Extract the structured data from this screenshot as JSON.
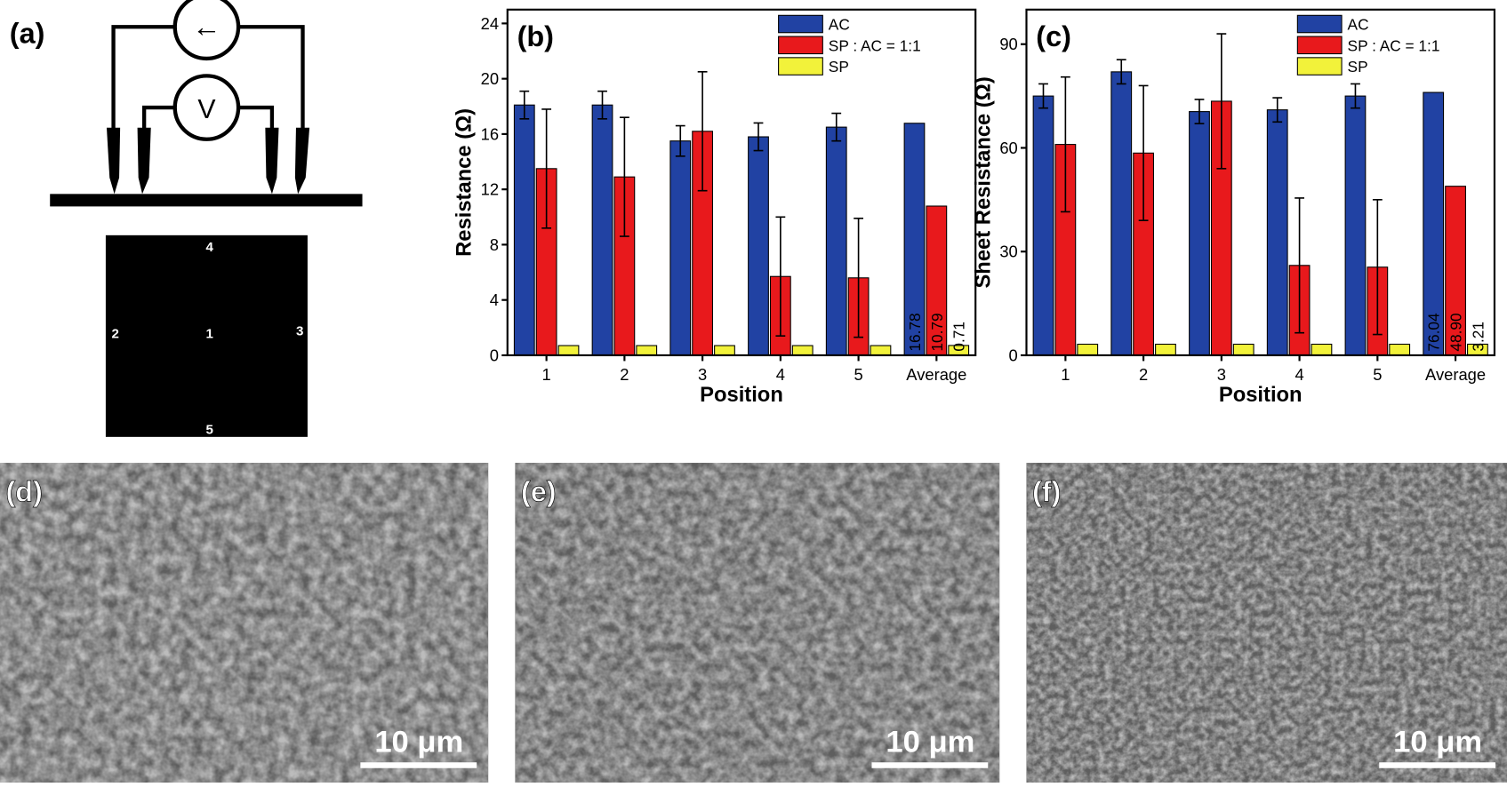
{
  "panel_a": {
    "label": "(a)",
    "ammeter": "←",
    "voltmeter": "V",
    "positions": [
      "4",
      "2",
      "1",
      "3",
      "5"
    ]
  },
  "chart_data": [
    {
      "type": "bar",
      "panel_label": "(b)",
      "xlabel": "Position",
      "ylabel": "Resistance (Ω)",
      "categories": [
        "1",
        "2",
        "3",
        "4",
        "5",
        "Average"
      ],
      "ylim": [
        0,
        25
      ],
      "yticks": [
        0,
        4,
        8,
        12,
        16,
        20,
        24
      ],
      "legend": "upper right",
      "series": [
        {
          "name": "AC",
          "color": "#2142a3",
          "values": [
            18.1,
            18.1,
            15.5,
            15.8,
            16.5,
            16.78
          ],
          "errors": [
            1.0,
            1.0,
            1.1,
            1.0,
            1.0,
            null
          ]
        },
        {
          "name": "SP : AC = 1:1",
          "color": "#e8191c",
          "values": [
            13.5,
            12.9,
            16.2,
            5.7,
            5.6,
            10.79
          ],
          "errors": [
            4.3,
            4.3,
            4.3,
            4.3,
            4.3,
            null
          ]
        },
        {
          "name": "SP",
          "color": "#f2f23a",
          "values": [
            0.7,
            0.7,
            0.7,
            0.7,
            0.7,
            0.71
          ],
          "errors": [
            null,
            null,
            null,
            null,
            null,
            null
          ]
        }
      ]
    },
    {
      "type": "bar",
      "panel_label": "(c)",
      "xlabel": "Position",
      "ylabel": "Sheet Resistance (Ω)",
      "categories": [
        "1",
        "2",
        "3",
        "4",
        "5",
        "Average"
      ],
      "ylim": [
        0,
        100
      ],
      "yticks": [
        0,
        30,
        60,
        90
      ],
      "legend": "upper right",
      "series": [
        {
          "name": "AC",
          "color": "#2142a3",
          "values": [
            75,
            82,
            70.5,
            71,
            75,
            76.04
          ],
          "errors": [
            3.5,
            3.5,
            3.5,
            3.5,
            3.5,
            null
          ]
        },
        {
          "name": "SP : AC = 1:1",
          "color": "#e8191c",
          "values": [
            61,
            58.5,
            73.5,
            26,
            25.5,
            48.9
          ],
          "value_labels": [
            null,
            null,
            null,
            null,
            null,
            "48.90"
          ],
          "errors": [
            19.5,
            19.5,
            19.5,
            19.5,
            19.5,
            null
          ]
        },
        {
          "name": "SP",
          "color": "#f2f23a",
          "values": [
            3.2,
            3.2,
            3.2,
            3.2,
            3.2,
            3.21
          ],
          "errors": [
            null,
            null,
            null,
            null,
            null,
            null
          ]
        }
      ]
    }
  ],
  "sem": [
    {
      "label": "(d)",
      "scale": "10 μm"
    },
    {
      "label": "(e)",
      "scale": "10 μm"
    },
    {
      "label": "(f)",
      "scale": "10 μm"
    }
  ]
}
